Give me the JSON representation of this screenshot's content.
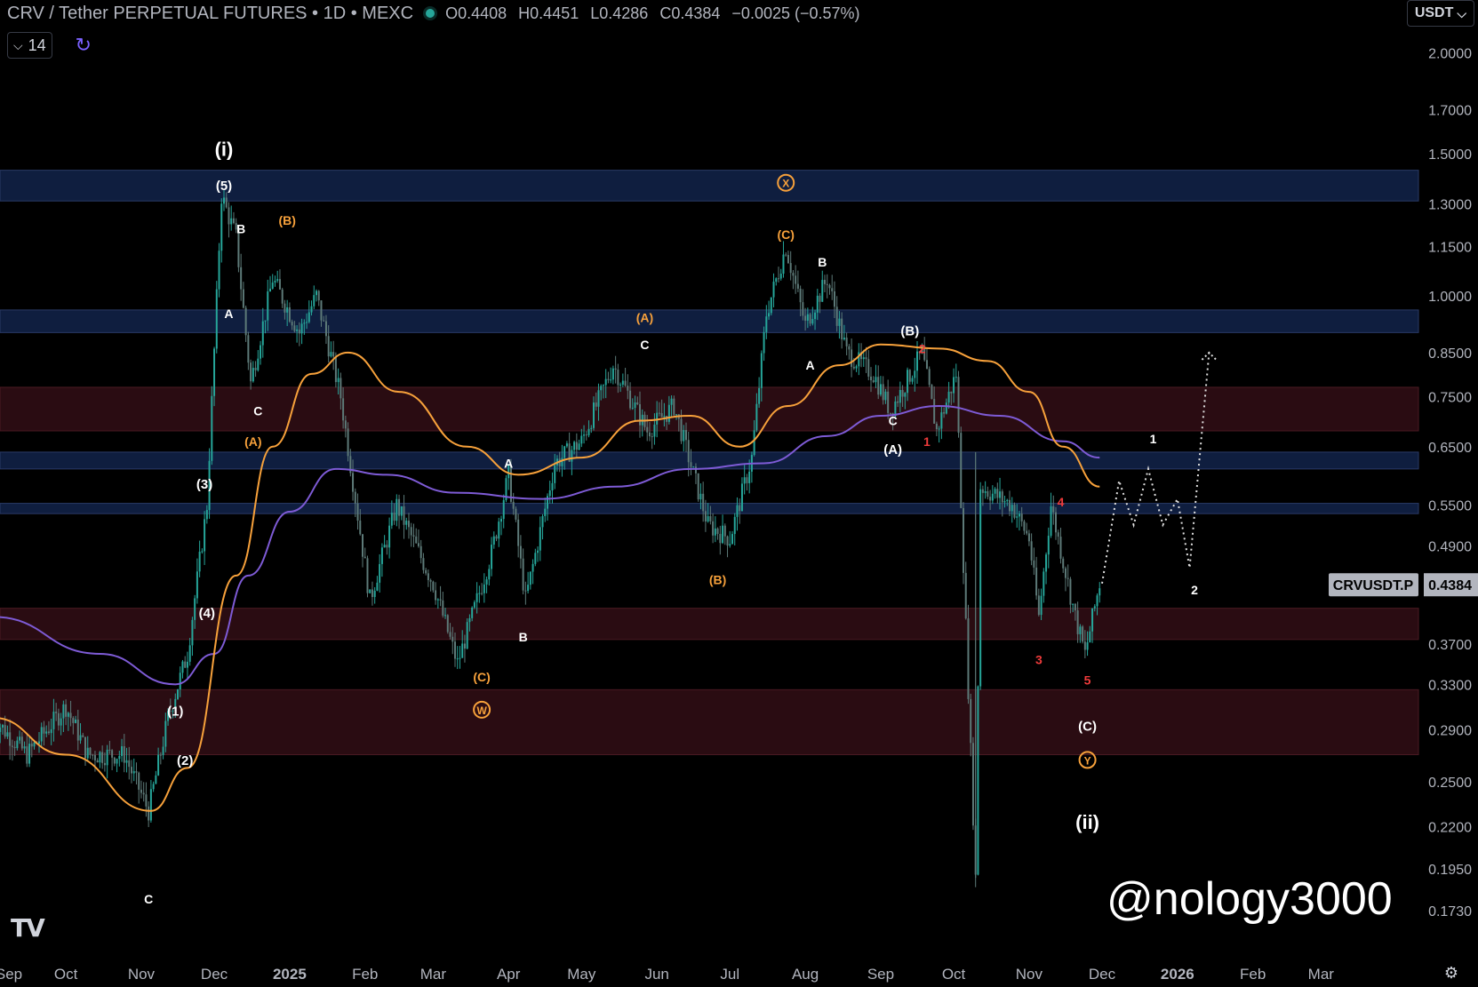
{
  "header": {
    "title": "CRV / Tether PERPETUAL FUTURES • 1D • MEXC",
    "open": "O0.4408",
    "high": "H0.4451",
    "low": "L0.4286",
    "close": "C0.4384",
    "change": "−0.0025 (−0.57%)"
  },
  "controls": {
    "indicators_count": "14",
    "unit": "USDT"
  },
  "watermark": "@nology3000",
  "colors": {
    "background": "#000000",
    "up": "#26a69a",
    "down": "#5d7a78",
    "ma_orange": "#f7a13b",
    "ma_purple": "#7e5bd6",
    "zone_blue": "#0f1e3f",
    "zone_red": "#2a0c12",
    "label_white": "#ffffff",
    "label_orange": "#f7a13b",
    "label_red": "#ef3b3b",
    "price_tag": "#b2b5be"
  },
  "chart_data": {
    "type": "candlestick",
    "symbol": "CRVUSDT.P",
    "last_price": "0.4384",
    "scale": "log",
    "ylim": [
      0.16,
      2.1
    ],
    "y_ticks": [
      "2.0000",
      "1.7000",
      "1.5000",
      "1.3000",
      "1.1500",
      "1.0000",
      "0.8500",
      "0.7500",
      "0.6500",
      "0.5500",
      "0.4900",
      "0.3700",
      "0.3300",
      "0.2900",
      "0.2500",
      "0.2200",
      "0.1950",
      "0.1730"
    ],
    "x_ticks": [
      "Sep",
      "Oct",
      "Nov",
      "Dec",
      "2025",
      "Feb",
      "Mar",
      "Apr",
      "May",
      "Jun",
      "Jul",
      "Aug",
      "Sep",
      "Oct",
      "Nov",
      "Dec",
      "2026",
      "Feb",
      "Mar"
    ],
    "x_range": [
      "2024-09-01",
      "2026-03-25"
    ],
    "price_path": [
      [
        "2024-09-01",
        0.3
      ],
      [
        "2024-09-15",
        0.27
      ],
      [
        "2024-10-01",
        0.31
      ],
      [
        "2024-10-10",
        0.27
      ],
      [
        "2024-10-25",
        0.27
      ],
      [
        "2024-11-04",
        0.23
      ],
      [
        "2024-11-12",
        0.3
      ],
      [
        "2024-11-20",
        0.36
      ],
      [
        "2024-11-28",
        0.55
      ],
      [
        "2024-12-04",
        1.33
      ],
      [
        "2024-12-10",
        1.18
      ],
      [
        "2024-12-16",
        0.78
      ],
      [
        "2024-12-25",
        1.05
      ],
      [
        "2025-01-05",
        0.9
      ],
      [
        "2025-01-12",
        1.0
      ],
      [
        "2025-01-22",
        0.75
      ],
      [
        "2025-02-03",
        0.42
      ],
      [
        "2025-02-14",
        0.55
      ],
      [
        "2025-03-01",
        0.44
      ],
      [
        "2025-03-11",
        0.35
      ],
      [
        "2025-03-25",
        0.48
      ],
      [
        "2025-04-01",
        0.6
      ],
      [
        "2025-04-08",
        0.42
      ],
      [
        "2025-04-20",
        0.62
      ],
      [
        "2025-05-01",
        0.66
      ],
      [
        "2025-05-14",
        0.82
      ],
      [
        "2025-05-28",
        0.68
      ],
      [
        "2025-06-08",
        0.73
      ],
      [
        "2025-06-22",
        0.52
      ],
      [
        "2025-07-01",
        0.5
      ],
      [
        "2025-07-10",
        0.63
      ],
      [
        "2025-07-16",
        0.95
      ],
      [
        "2025-07-24",
        1.15
      ],
      [
        "2025-08-01",
        0.92
      ],
      [
        "2025-08-10",
        1.05
      ],
      [
        "2025-08-18",
        0.85
      ],
      [
        "2025-08-29",
        0.8
      ],
      [
        "2025-09-05",
        0.72
      ],
      [
        "2025-09-18",
        0.85
      ],
      [
        "2025-09-24",
        0.68
      ],
      [
        "2025-10-02",
        0.8
      ],
      [
        "2025-10-10",
        0.19
      ],
      [
        "2025-10-12",
        0.58
      ],
      [
        "2025-10-25",
        0.55
      ],
      [
        "2025-11-01",
        0.5
      ],
      [
        "2025-11-05",
        0.4
      ],
      [
        "2025-11-10",
        0.55
      ],
      [
        "2025-11-20",
        0.4
      ],
      [
        "2025-11-24",
        0.36
      ],
      [
        "2025-11-30",
        0.44
      ]
    ],
    "ma_slow": [
      [
        "2024-09-01",
        0.4
      ],
      [
        "2024-10-15",
        0.36
      ],
      [
        "2024-11-15",
        0.33
      ],
      [
        "2024-12-01",
        0.36
      ],
      [
        "2024-12-15",
        0.45
      ],
      [
        "2025-01-01",
        0.54
      ],
      [
        "2025-01-20",
        0.61
      ],
      [
        "2025-02-10",
        0.6
      ],
      [
        "2025-03-10",
        0.57
      ],
      [
        "2025-04-15",
        0.56
      ],
      [
        "2025-05-15",
        0.58
      ],
      [
        "2025-06-15",
        0.61
      ],
      [
        "2025-07-15",
        0.62
      ],
      [
        "2025-08-10",
        0.67
      ],
      [
        "2025-09-01",
        0.71
      ],
      [
        "2025-09-25",
        0.73
      ],
      [
        "2025-10-20",
        0.71
      ],
      [
        "2025-11-15",
        0.66
      ],
      [
        "2025-11-30",
        0.63
      ]
    ],
    "ma_fast": [
      [
        "2024-09-01",
        0.3
      ],
      [
        "2024-10-01",
        0.27
      ],
      [
        "2024-11-05",
        0.23
      ],
      [
        "2024-11-20",
        0.26
      ],
      [
        "2024-12-10",
        0.45
      ],
      [
        "2024-12-25",
        0.65
      ],
      [
        "2025-01-10",
        0.8
      ],
      [
        "2025-01-25",
        0.85
      ],
      [
        "2025-02-15",
        0.76
      ],
      [
        "2025-03-15",
        0.65
      ],
      [
        "2025-04-05",
        0.6
      ],
      [
        "2025-05-01",
        0.63
      ],
      [
        "2025-05-25",
        0.7
      ],
      [
        "2025-06-15",
        0.71
      ],
      [
        "2025-07-05",
        0.65
      ],
      [
        "2025-07-25",
        0.73
      ],
      [
        "2025-08-15",
        0.82
      ],
      [
        "2025-09-01",
        0.87
      ],
      [
        "2025-09-25",
        0.86
      ],
      [
        "2025-10-15",
        0.83
      ],
      [
        "2025-11-01",
        0.76
      ],
      [
        "2025-11-15",
        0.65
      ],
      [
        "2025-11-30",
        0.58
      ]
    ],
    "projection_white": [
      [
        "2025-12-01",
        0.44
      ],
      [
        "2025-12-08",
        0.59
      ],
      [
        "2025-12-14",
        0.52
      ],
      [
        "2025-12-20",
        0.61
      ],
      [
        "2025-12-26",
        0.52
      ],
      [
        "2026-01-01",
        0.56
      ],
      [
        "2026-01-06",
        0.46
      ],
      [
        "2026-01-14",
        0.85
      ]
    ],
    "zones": [
      {
        "kind": "blue",
        "from": 1.31,
        "to": 1.43
      },
      {
        "kind": "blue",
        "from": 0.9,
        "to": 0.96
      },
      {
        "kind": "red",
        "from": 0.68,
        "to": 0.77
      },
      {
        "kind": "blue",
        "from": 0.61,
        "to": 0.64
      },
      {
        "kind": "blue",
        "from": 0.537,
        "to": 0.553
      },
      {
        "kind": "red",
        "from": 0.375,
        "to": 0.41
      },
      {
        "kind": "red",
        "from": 0.27,
        "to": 0.325
      }
    ],
    "labels": [
      {
        "text": "(i)",
        "x": "2024-12-05",
        "y": 1.52,
        "color": "white",
        "size": 22
      },
      {
        "text": "(5)",
        "x": "2024-12-05",
        "y": 1.37,
        "color": "white",
        "size": 15
      },
      {
        "text": "B",
        "x": "2024-12-12",
        "y": 1.21,
        "color": "white",
        "size": 14
      },
      {
        "text": "(B)",
        "x": "2024-12-31",
        "y": 1.24,
        "color": "orange",
        "size": 14
      },
      {
        "text": "A",
        "x": "2024-12-07",
        "y": 0.95,
        "color": "white",
        "size": 14
      },
      {
        "text": "C",
        "x": "2024-12-19",
        "y": 0.72,
        "color": "white",
        "size": 14
      },
      {
        "text": "(A)",
        "x": "2024-12-17",
        "y": 0.66,
        "color": "orange",
        "size": 14
      },
      {
        "text": "(3)",
        "x": "2024-11-27",
        "y": 0.585,
        "color": "white",
        "size": 15
      },
      {
        "text": "(4)",
        "x": "2024-11-28",
        "y": 0.405,
        "color": "white",
        "size": 15
      },
      {
        "text": "(1)",
        "x": "2024-11-15",
        "y": 0.306,
        "color": "white",
        "size": 15
      },
      {
        "text": "(2)",
        "x": "2024-11-19",
        "y": 0.266,
        "color": "white",
        "size": 15
      },
      {
        "text": "C",
        "x": "2024-11-04",
        "y": 0.179,
        "color": "white",
        "size": 14
      },
      {
        "text": "(C)",
        "x": "2025-03-21",
        "y": 0.337,
        "color": "orange",
        "size": 14
      },
      {
        "text": "W",
        "x": "2025-03-21",
        "y": 0.307,
        "color": "orange",
        "size": 14,
        "circled": true
      },
      {
        "text": "A",
        "x": "2025-04-01",
        "y": 0.62,
        "color": "white",
        "size": 14
      },
      {
        "text": "B",
        "x": "2025-04-07",
        "y": 0.378,
        "color": "white",
        "size": 14
      },
      {
        "text": "(A)",
        "x": "2025-05-27",
        "y": 0.94,
        "color": "orange",
        "size": 14
      },
      {
        "text": "C",
        "x": "2025-05-27",
        "y": 0.87,
        "color": "white",
        "size": 14
      },
      {
        "text": "(B)",
        "x": "2025-06-26",
        "y": 0.445,
        "color": "orange",
        "size": 14
      },
      {
        "text": "X",
        "x": "2025-07-24",
        "y": 1.38,
        "color": "orange",
        "size": 14,
        "circled": true
      },
      {
        "text": "(C)",
        "x": "2025-07-24",
        "y": 1.19,
        "color": "orange",
        "size": 14
      },
      {
        "text": "B",
        "x": "2025-08-08",
        "y": 1.1,
        "color": "white",
        "size": 14
      },
      {
        "text": "A",
        "x": "2025-08-03",
        "y": 0.82,
        "color": "white",
        "size": 14
      },
      {
        "text": "(B)",
        "x": "2025-09-13",
        "y": 0.905,
        "color": "white",
        "size": 15
      },
      {
        "text": "2",
        "x": "2025-09-18",
        "y": 0.86,
        "color": "red",
        "size": 14
      },
      {
        "text": "C",
        "x": "2025-09-06",
        "y": 0.7,
        "color": "white",
        "size": 14
      },
      {
        "text": "(A)",
        "x": "2025-09-06",
        "y": 0.645,
        "color": "white",
        "size": 15
      },
      {
        "text": "1",
        "x": "2025-09-20",
        "y": 0.66,
        "color": "red",
        "size": 14
      },
      {
        "text": "4",
        "x": "2025-11-14",
        "y": 0.555,
        "color": "red",
        "size": 14
      },
      {
        "text": "3",
        "x": "2025-11-05",
        "y": 0.354,
        "color": "red",
        "size": 14
      },
      {
        "text": "5",
        "x": "2025-11-25",
        "y": 0.334,
        "color": "red",
        "size": 14
      },
      {
        "text": "(C)",
        "x": "2025-11-25",
        "y": 0.293,
        "color": "white",
        "size": 15
      },
      {
        "text": "Y",
        "x": "2025-11-25",
        "y": 0.266,
        "color": "orange",
        "size": 14,
        "circled": true
      },
      {
        "text": "(ii)",
        "x": "2025-11-25",
        "y": 0.223,
        "color": "white",
        "size": 22
      },
      {
        "text": "1",
        "x": "2025-12-22",
        "y": 0.665,
        "color": "white",
        "size": 14
      },
      {
        "text": "2",
        "x": "2026-01-08",
        "y": 0.432,
        "color": "white",
        "size": 14
      }
    ]
  }
}
